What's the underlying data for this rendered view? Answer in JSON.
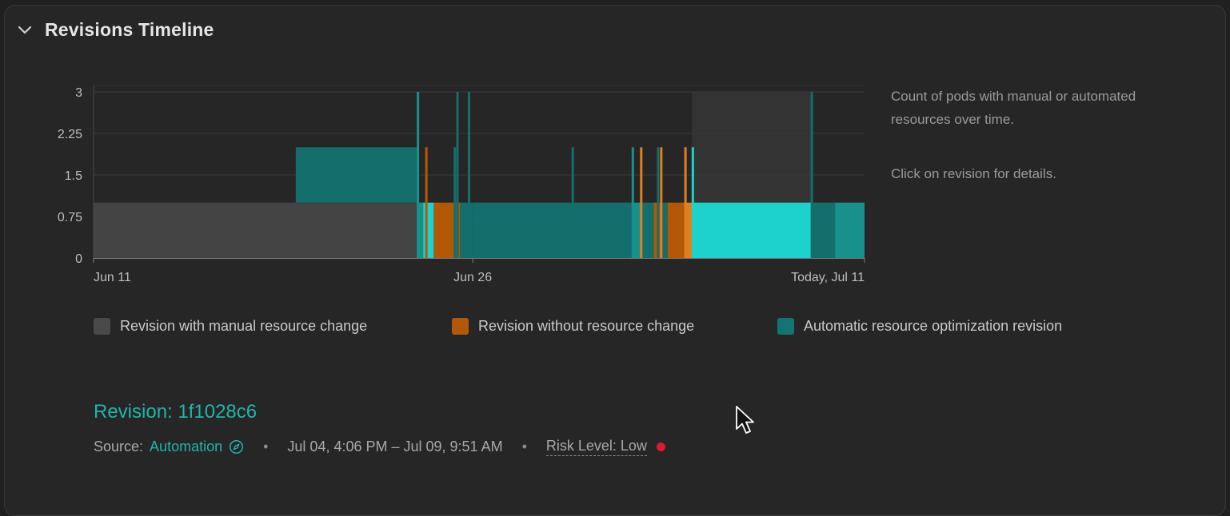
{
  "section": {
    "title": "Revisions Timeline",
    "toggle_icon": "chevron-down-icon"
  },
  "chart_data": {
    "type": "bar",
    "title": "",
    "xlabel": "",
    "ylabel": "",
    "ylim": [
      0,
      3
    ],
    "y_ticks": [
      "0",
      "0.75",
      "1.5",
      "2.25",
      "3"
    ],
    "x_ticks": [
      {
        "label": "Jun 11",
        "date": "2024-06-11"
      },
      {
        "label": "Jun 26",
        "date": "2024-06-26"
      },
      {
        "label": "Today, Jul 11",
        "date": "2024-07-11"
      }
    ],
    "x_range": [
      "2024-06-11",
      "2024-07-11"
    ],
    "grid": true,
    "legend_position": "bottom",
    "colors": {
      "manual": "#444444",
      "none": "#b35806",
      "auto": "#146e6c",
      "auto_mid": "#18918d",
      "auto_light": "#1dd2cc",
      "none_light": "#e0801c",
      "highlight": "#333333"
    },
    "highlight": {
      "start": "2024-07-04T16:06",
      "end": "2024-07-09T09:51"
    },
    "segments": [
      {
        "start": "2024-06-11T00:00",
        "end": "2024-06-23T19:00",
        "value": 1,
        "kind": "manual"
      },
      {
        "start": "2024-06-19T00:00",
        "end": "2024-06-23T20:00",
        "value": 1,
        "base": 1,
        "kind": "auto"
      },
      {
        "start": "2024-06-23T19:00",
        "end": "2024-06-24T01:00",
        "value": 1,
        "kind": "auto_mid"
      },
      {
        "start": "2024-06-24T01:00",
        "end": "2024-06-24T11:00",
        "value": 1,
        "kind": "auto_light"
      },
      {
        "start": "2024-06-24T11:00",
        "end": "2024-06-25T12:00",
        "value": 1,
        "kind": "none"
      },
      {
        "start": "2024-06-25T12:00",
        "end": "2024-06-26T00:00",
        "value": 1,
        "kind": "auto"
      },
      {
        "start": "2024-06-26T00:00",
        "end": "2024-06-29T23:00",
        "value": 1,
        "kind": "auto"
      },
      {
        "start": "2024-06-29T23:00",
        "end": "2024-07-02T08:00",
        "value": 1,
        "kind": "auto"
      },
      {
        "start": "2024-07-02T08:00",
        "end": "2024-07-02T16:00",
        "value": 1,
        "kind": "auto_mid"
      },
      {
        "start": "2024-07-02T16:00",
        "end": "2024-07-03T04:00",
        "value": 1,
        "kind": "auto"
      },
      {
        "start": "2024-07-03T04:00",
        "end": "2024-07-03T11:00",
        "value": 1,
        "kind": "none"
      },
      {
        "start": "2024-07-03T11:00",
        "end": "2024-07-03T17:00",
        "value": 1,
        "kind": "auto"
      },
      {
        "start": "2024-07-03T17:00",
        "end": "2024-07-04T10:00",
        "value": 1,
        "kind": "none"
      },
      {
        "start": "2024-07-04T10:00",
        "end": "2024-07-04T16:06",
        "value": 1,
        "kind": "none_light"
      },
      {
        "start": "2024-07-04T16:06",
        "end": "2024-07-09T09:51",
        "value": 1,
        "kind": "auto_light"
      },
      {
        "start": "2024-07-09T09:51",
        "end": "2024-07-10T08:00",
        "value": 1,
        "kind": "auto"
      },
      {
        "start": "2024-07-10T08:00",
        "end": "2024-07-11T12:00",
        "value": 1,
        "kind": "auto_mid"
      }
    ],
    "spikes": [
      {
        "date": "2024-06-23T20:00",
        "value": 3,
        "kind": "auto_mid"
      },
      {
        "date": "2024-06-24T04:00",
        "value": 2,
        "kind": "none"
      },
      {
        "date": "2024-06-25T07:00",
        "value": 2,
        "kind": "auto"
      },
      {
        "date": "2024-06-25T09:30",
        "value": 3,
        "kind": "auto"
      },
      {
        "date": "2024-06-25T20:30",
        "value": 3,
        "kind": "auto"
      },
      {
        "date": "2024-06-29T23:00",
        "value": 2,
        "kind": "auto"
      },
      {
        "date": "2024-07-02T08:00",
        "value": 2,
        "kind": "auto_mid"
      },
      {
        "date": "2024-07-02T16:00",
        "value": 2,
        "kind": "none_light"
      },
      {
        "date": "2024-07-03T08:00",
        "value": 2,
        "kind": "auto"
      },
      {
        "date": "2024-07-03T11:00",
        "value": 2,
        "kind": "none_light"
      },
      {
        "date": "2024-07-04T10:00",
        "value": 2,
        "kind": "none_light"
      },
      {
        "date": "2024-07-04T17:00",
        "value": 2,
        "kind": "auto_light"
      },
      {
        "date": "2024-07-09T10:00",
        "value": 3,
        "kind": "auto"
      }
    ]
  },
  "chart_note": {
    "line1": "Count of pods with manual or automated resources over time.",
    "line2": "Click on revision for details."
  },
  "legend": [
    {
      "label": "Revision with manual resource change",
      "color": "#4a4a4a"
    },
    {
      "label": "Revision without resource change",
      "color": "#b35806"
    },
    {
      "label": "Automatic resource optimization revision",
      "color": "#137573"
    }
  ],
  "revision": {
    "title": "Revision: 1f1028c6",
    "source_label": "Source:",
    "source_value": "Automation",
    "source_icon": "compass-icon",
    "time_range": "Jul 04, 4:06 PM – Jul 09, 9:51 AM",
    "risk_label": "Risk Level: Low",
    "risk_color": "#e01830",
    "separator": "•"
  }
}
